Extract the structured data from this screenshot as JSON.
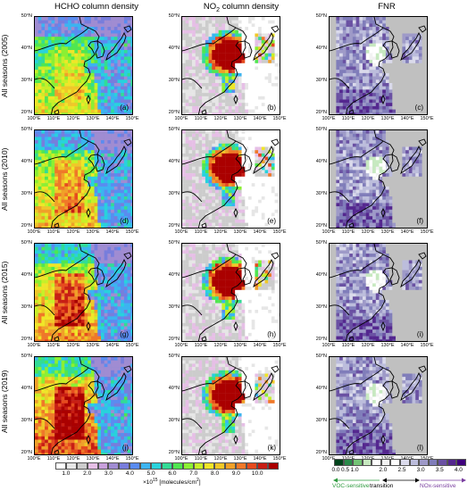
{
  "columns": [
    {
      "title_pre": "HCHO column density",
      "title_sub": "",
      "title_post": ""
    },
    {
      "title_pre": "NO",
      "title_sub": "2",
      "title_post": " column density"
    },
    {
      "title_pre": "FNR",
      "title_sub": "",
      "title_post": ""
    }
  ],
  "rows": [
    {
      "label": "All seasons (2005)",
      "panels": [
        "(a)",
        "(b)",
        "(c)"
      ]
    },
    {
      "label": "All seasons (2010)",
      "panels": [
        "(d)",
        "(e)",
        "(f)"
      ]
    },
    {
      "label": "All seasons (2015)",
      "panels": [
        "(g)",
        "(h)",
        "(i)"
      ]
    },
    {
      "label": "All seasons (2019)",
      "panels": [
        "(j)",
        "(k)",
        "(l)"
      ]
    }
  ],
  "lat_ticks": [
    "50°N",
    "40°N",
    "30°N",
    "20°N"
  ],
  "lon_ticks": [
    "100°E",
    "110°E",
    "120°E",
    "130°E",
    "140°E",
    "150°E"
  ],
  "colorbar_main": {
    "ticks": [
      "1.0",
      "2.0",
      "3.0",
      "4.0",
      "5.0",
      "6.0",
      "7.0",
      "8.0",
      "9.0",
      "10.0"
    ],
    "unit_pre": "×10",
    "unit_exp": "15",
    "unit_post": " [molecules/cm",
    "unit_exp2": "2",
    "unit_end": "]",
    "colors": [
      "#ffffff",
      "#e6e6e6",
      "#cccccc",
      "#e6bfe6",
      "#c8a0dc",
      "#a08cd2",
      "#787ddc",
      "#5a8cf0",
      "#3cb4f0",
      "#28d2dc",
      "#32dc96",
      "#50e650",
      "#8cf032",
      "#c8f028",
      "#f0e628",
      "#f0c828",
      "#f0a028",
      "#f07828",
      "#e64b1e",
      "#c81e14",
      "#aa0000"
    ]
  },
  "colorbar_fnr": {
    "ticks": [
      "0.0",
      "0.5",
      "1.0",
      "2.0",
      "2.5",
      "3.0",
      "3.5",
      "4.0"
    ],
    "colors": [
      "#00441b",
      "#2a8a4a",
      "#74c476",
      "#c7e9c0",
      "#ffffff",
      "#f2f2f2",
      "#ffffff",
      "#dadaeb",
      "#bcbddc",
      "#9e9ac8",
      "#807dba",
      "#6a51a3",
      "#54278f",
      "#3f007d"
    ],
    "voc_label": "VOC-sensitive",
    "transition_label": "transition",
    "nox_label": "NOx-sensitive"
  },
  "colors": {
    "voc": "#2e9a3e",
    "nox": "#7a3fa0",
    "land_gray": "#c0c0c0"
  }
}
